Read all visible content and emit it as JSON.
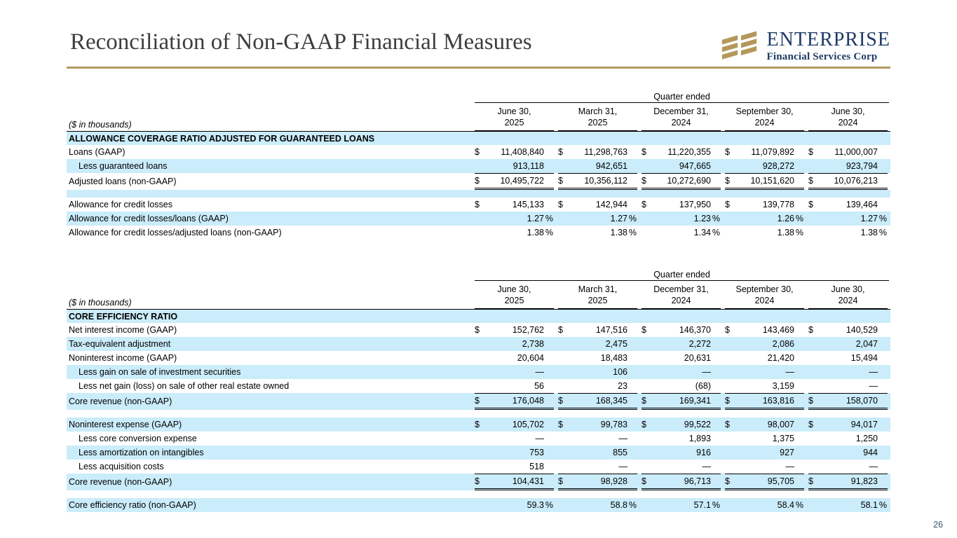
{
  "page": {
    "title": "Reconciliation of Non-GAAP Financial Measures",
    "page_number": "26",
    "logo": {
      "name": "ENTERPRISE",
      "subtitle": "Financial Services Corp",
      "icon": "gold-stripes-icon"
    },
    "colors": {
      "accent_gold": "#b29a5e",
      "navy": "#1e3a66",
      "band_blue": "#cbecfa",
      "title_gray": "#3d3d3d"
    }
  },
  "tables": [
    {
      "note": "($ in thousands)",
      "span_header": "Quarter ended",
      "columns": [
        {
          "line1": "June 30,",
          "line2": "2025"
        },
        {
          "line1": "March 31,",
          "line2": "2025"
        },
        {
          "line1": "December 31,",
          "line2": "2024"
        },
        {
          "line1": "September 30,",
          "line2": "2024"
        },
        {
          "line1": "June 30,",
          "line2": "2024"
        }
      ],
      "rows": [
        {
          "type": "section",
          "shade": "blue",
          "label": "ALLOWANCE COVERAGE RATIO ADJUSTED FOR GUARANTEED LOANS"
        },
        {
          "type": "data",
          "shade": "white",
          "label": "Loans (GAAP)",
          "currency": "$",
          "values": [
            "11,408,840",
            "11,298,763",
            "11,220,355",
            "11,079,892",
            "11,000,007"
          ]
        },
        {
          "type": "data",
          "shade": "blue",
          "indent": true,
          "label": "Less guaranteed loans",
          "values": [
            "913,118",
            "942,651",
            "947,665",
            "928,272",
            "923,794"
          ]
        },
        {
          "type": "data",
          "shade": "white",
          "total": true,
          "label": "Adjusted loans (non-GAAP)",
          "currency": "$",
          "values": [
            "10,495,722",
            "10,356,112",
            "10,272,690",
            "10,151,620",
            "10,076,213"
          ]
        },
        {
          "type": "spacer",
          "shade": "blue"
        },
        {
          "type": "data",
          "shade": "white",
          "label": "Allowance for credit losses",
          "currency": "$",
          "values": [
            "145,133",
            "142,944",
            "137,950",
            "139,778",
            "139,464"
          ]
        },
        {
          "type": "data",
          "shade": "blue",
          "label": "Allowance for credit losses/loans (GAAP)",
          "unit": "%",
          "values": [
            "1.27",
            "1.27",
            "1.23",
            "1.26",
            "1.27"
          ]
        },
        {
          "type": "data",
          "shade": "white",
          "label": "Allowance for credit losses/adjusted loans (non-GAAP)",
          "unit": "%",
          "values": [
            "1.38",
            "1.38",
            "1.34",
            "1.38",
            "1.38"
          ]
        }
      ]
    },
    {
      "note": "($ in thousands)",
      "span_header": "Quarter ended",
      "columns": [
        {
          "line1": "June 30,",
          "line2": "2025"
        },
        {
          "line1": "March 31,",
          "line2": "2025"
        },
        {
          "line1": "December 31,",
          "line2": "2024"
        },
        {
          "line1": "September 30,",
          "line2": "2024"
        },
        {
          "line1": "June 30,",
          "line2": "2024"
        }
      ],
      "rows": [
        {
          "type": "section",
          "shade": "blue",
          "label": "CORE EFFICIENCY RATIO"
        },
        {
          "type": "data",
          "shade": "white",
          "label": "Net interest income (GAAP)",
          "currency": "$",
          "values": [
            "152,762",
            "147,516",
            "146,370",
            "143,469",
            "140,529"
          ]
        },
        {
          "type": "data",
          "shade": "blue",
          "label": "Tax-equivalent adjustment",
          "values": [
            "2,738",
            "2,475",
            "2,272",
            "2,086",
            "2,047"
          ]
        },
        {
          "type": "data",
          "shade": "white",
          "label": "Noninterest income (GAAP)",
          "values": [
            "20,604",
            "18,483",
            "20,631",
            "21,420",
            "15,494"
          ]
        },
        {
          "type": "data",
          "shade": "blue",
          "indent": true,
          "label": "Less gain on sale of investment securities",
          "values": [
            "—",
            "106",
            "—",
            "—",
            "—"
          ]
        },
        {
          "type": "data",
          "shade": "white",
          "indent": true,
          "label": "Less net gain (loss) on sale of other real estate owned",
          "values": [
            "56",
            "23",
            "(68)",
            "3,159",
            "—"
          ]
        },
        {
          "type": "data",
          "shade": "blue",
          "total": true,
          "label": "Core revenue (non-GAAP)",
          "currency": "$",
          "values": [
            "176,048",
            "168,345",
            "169,341",
            "163,816",
            "158,070"
          ]
        },
        {
          "type": "spacer",
          "shade": "white"
        },
        {
          "type": "data",
          "shade": "blue",
          "label": "Noninterest expense (GAAP)",
          "currency": "$",
          "values": [
            "105,702",
            "99,783",
            "99,522",
            "98,007",
            "94,017"
          ]
        },
        {
          "type": "data",
          "shade": "white",
          "indent": true,
          "label": "Less core conversion expense",
          "values": [
            "—",
            "—",
            "1,893",
            "1,375",
            "1,250"
          ]
        },
        {
          "type": "data",
          "shade": "blue",
          "indent": true,
          "label": "Less amortization on intangibles",
          "values": [
            "753",
            "855",
            "916",
            "927",
            "944"
          ]
        },
        {
          "type": "data",
          "shade": "white",
          "indent": true,
          "label": "Less acquisition costs",
          "values": [
            "518",
            "—",
            "—",
            "—",
            "—"
          ]
        },
        {
          "type": "data",
          "shade": "blue",
          "total": true,
          "label": "Core revenue (non-GAAP)",
          "currency": "$",
          "values": [
            "104,431",
            "98,928",
            "96,713",
            "95,705",
            "91,823"
          ]
        },
        {
          "type": "spacer",
          "shade": "white"
        },
        {
          "type": "data",
          "shade": "blue",
          "label": "Core efficiency ratio (non-GAAP)",
          "unit": "%",
          "values": [
            "59.3",
            "58.8",
            "57.1",
            "58.4",
            "58.1"
          ]
        }
      ]
    }
  ]
}
